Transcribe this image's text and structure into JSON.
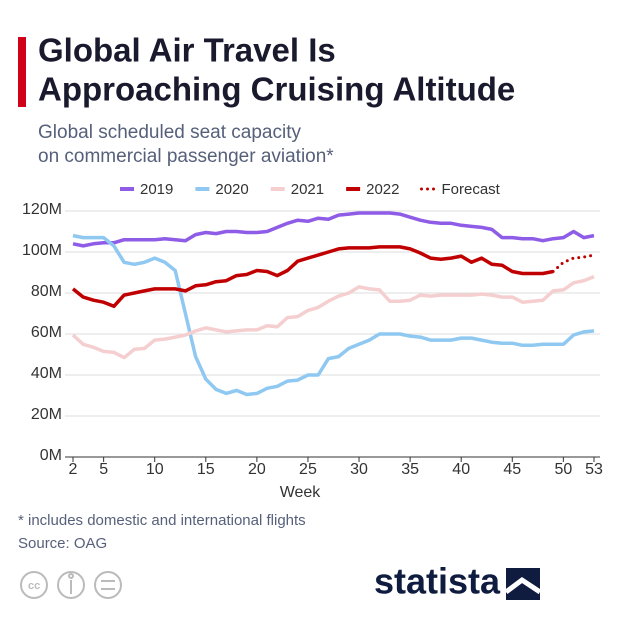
{
  "chart_data": {
    "type": "line",
    "title": [
      "Global Air Travel Is",
      "Approaching Cruising Altitude"
    ],
    "subtitle": [
      "Global scheduled seat capacity",
      "on commercial passenger aviation*"
    ],
    "x_label": "Week",
    "x": [
      2,
      3,
      4,
      5,
      6,
      7,
      8,
      9,
      10,
      11,
      12,
      13,
      14,
      15,
      16,
      17,
      18,
      19,
      20,
      21,
      22,
      23,
      24,
      25,
      26,
      27,
      28,
      29,
      30,
      31,
      32,
      33,
      34,
      35,
      36,
      37,
      38,
      39,
      40,
      41,
      42,
      43,
      44,
      45,
      46,
      47,
      48,
      49,
      50,
      51,
      52,
      53
    ],
    "series": [
      {
        "name": "2019",
        "color": "#8e5ce6",
        "style": "solid",
        "values": [
          104,
          103,
          104,
          104.5,
          104.5,
          106,
          106,
          106,
          106,
          106.5,
          106,
          105.5,
          108.5,
          109.5,
          109,
          110,
          110,
          109.5,
          109.5,
          110,
          112,
          114,
          115.5,
          115,
          116.5,
          116,
          118,
          118.5,
          119,
          119,
          119,
          119,
          118.5,
          117,
          115.5,
          114.5,
          114,
          114,
          113,
          112.5,
          112,
          111,
          107,
          107,
          106.5,
          106.5,
          105.5,
          106.5,
          107,
          110,
          107,
          108
        ]
      },
      {
        "name": "2020",
        "color": "#8fc8f0",
        "style": "solid",
        "values": [
          108,
          107,
          107,
          107,
          103,
          95,
          94,
          95,
          97,
          95,
          91,
          70,
          49,
          38,
          33,
          31,
          32.5,
          30.5,
          31,
          33.5,
          34.5,
          37,
          37.5,
          40,
          40,
          48,
          49,
          53,
          55,
          57,
          60,
          60,
          60,
          59,
          58.5,
          57,
          57,
          57,
          58,
          58,
          57,
          56,
          55.5,
          55.5,
          54.5,
          54.5,
          55,
          55,
          55,
          59.5,
          61,
          61.5
        ]
      },
      {
        "name": "2021",
        "color": "#f5cfd0",
        "style": "solid",
        "values": [
          59.5,
          55,
          53.5,
          51.5,
          51,
          48.5,
          52.5,
          53,
          57,
          57.5,
          58.5,
          59.5,
          61.5,
          63,
          62,
          61,
          61.5,
          62,
          62,
          64,
          63.5,
          68,
          68.5,
          71.5,
          73,
          76,
          78.5,
          80,
          83,
          82,
          81.5,
          76,
          76,
          76.5,
          79,
          78.5,
          79,
          79,
          79,
          79,
          79.5,
          79,
          78,
          78,
          75.5,
          76,
          76.5,
          81,
          81.5,
          85,
          86,
          88
        ]
      },
      {
        "name": "2022",
        "color": "#c00000",
        "style": "solid",
        "values": [
          82,
          78,
          76.5,
          75.5,
          73.5,
          79,
          80,
          81,
          82,
          82,
          82,
          81,
          83.5,
          84,
          85.5,
          86,
          88.5,
          89,
          91,
          90.5,
          88.5,
          91,
          95.5,
          97,
          98.5,
          100,
          101.5,
          102,
          102,
          102,
          102.5,
          102.5,
          102.5,
          101.5,
          99.5,
          97,
          96.5,
          97,
          98,
          95,
          97,
          94,
          93.5,
          90.5,
          89.5,
          89.5,
          89.5,
          90.5,
          null,
          null,
          null,
          null
        ]
      },
      {
        "name": "Forecast",
        "color": "#c00000",
        "style": "dotted",
        "values": [
          null,
          null,
          null,
          null,
          null,
          null,
          null,
          null,
          null,
          null,
          null,
          null,
          null,
          null,
          null,
          null,
          null,
          null,
          null,
          null,
          null,
          null,
          null,
          null,
          null,
          null,
          null,
          null,
          null,
          null,
          null,
          null,
          null,
          null,
          null,
          null,
          null,
          null,
          null,
          null,
          null,
          null,
          null,
          null,
          null,
          null,
          null,
          90.5,
          95,
          97,
          97.5,
          98.5
        ]
      }
    ],
    "xlim": [
      2,
      53
    ],
    "xticks": [
      2,
      5,
      10,
      15,
      20,
      25,
      30,
      35,
      40,
      45,
      50,
      53
    ],
    "ylim": [
      0,
      120
    ],
    "yticks": [
      {
        "value": 0,
        "label": "0M"
      },
      {
        "value": 20,
        "label": "20M"
      },
      {
        "value": 40,
        "label": "40M"
      },
      {
        "value": 60,
        "label": "60M"
      },
      {
        "value": 80,
        "label": "80M"
      },
      {
        "value": 100,
        "label": "100M"
      },
      {
        "value": 120,
        "label": "120M"
      }
    ],
    "grid": true,
    "legend": "top",
    "footnote": "* includes domestic and international flights",
    "source": "Source: OAG",
    "brand": "statista"
  }
}
